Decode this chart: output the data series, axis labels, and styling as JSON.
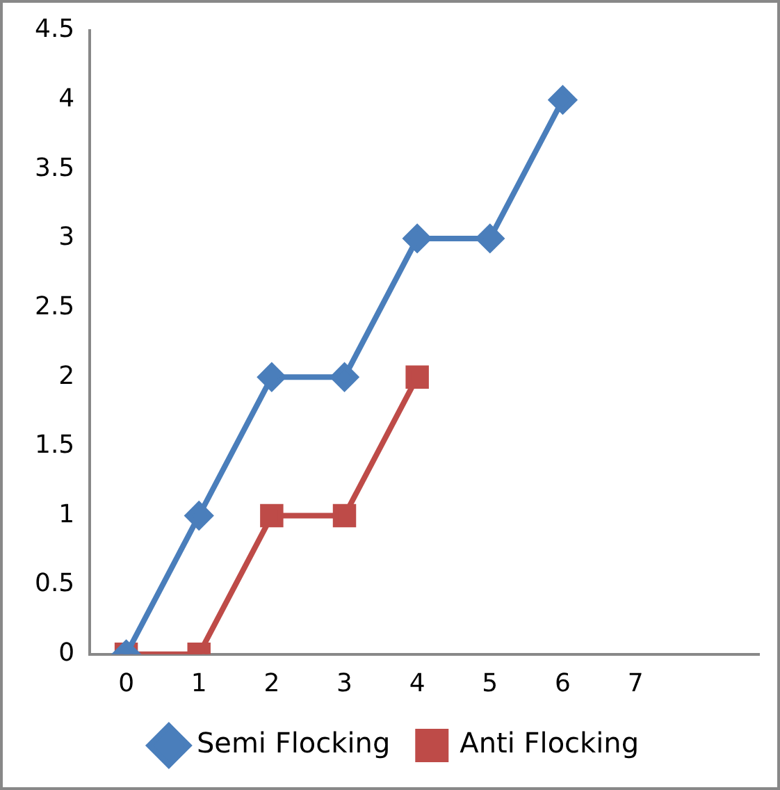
{
  "chart_data": {
    "type": "line",
    "x": [
      0,
      1,
      2,
      3,
      4,
      5,
      6
    ],
    "series": [
      {
        "name": "Semi Flocking",
        "color": "#4a7ebb",
        "marker": "diamond",
        "values": [
          0,
          1,
          2,
          2,
          3,
          3,
          4
        ]
      },
      {
        "name": "Anti Flocking",
        "color": "#be4b48",
        "marker": "square",
        "x": [
          0,
          1,
          2,
          3,
          4
        ],
        "values": [
          0,
          0,
          1,
          1,
          2
        ]
      }
    ],
    "xlim": [
      -0.5,
      8.7
    ],
    "xticks": [
      0,
      1,
      2,
      3,
      4,
      5,
      6,
      7
    ],
    "ylim": [
      0,
      4.5
    ],
    "yticks": [
      0,
      0.5,
      1,
      1.5,
      2,
      2.5,
      3,
      3.5,
      4,
      4.5
    ],
    "grid": false,
    "legend": "bottom",
    "line_style": "solid"
  }
}
